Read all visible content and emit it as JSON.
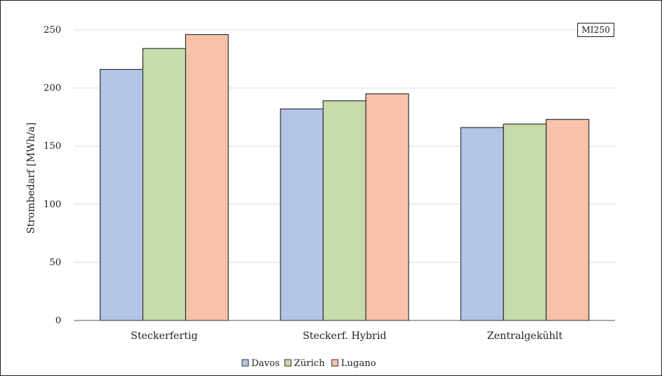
{
  "chart_data": {
    "type": "bar",
    "title": "",
    "xlabel": "",
    "ylabel": "Strombedarf [MWh/a]",
    "ylim": [
      0,
      250
    ],
    "yticks": [
      0,
      50,
      100,
      150,
      200,
      250
    ],
    "grid": true,
    "legend_position": "bottom",
    "annotation": "MI250",
    "categories": [
      "Steckerfertig",
      "Steckerf. Hybrid",
      "Zentralgekühlt"
    ],
    "series": [
      {
        "name": "Davos",
        "color": "#b4c4e6",
        "values": [
          216,
          182,
          166
        ]
      },
      {
        "name": "Zürich",
        "color": "#c6dcab",
        "values": [
          234,
          189,
          169
        ]
      },
      {
        "name": "Lugano",
        "color": "#f6c3a8",
        "values": [
          246,
          195,
          173
        ]
      }
    ]
  }
}
